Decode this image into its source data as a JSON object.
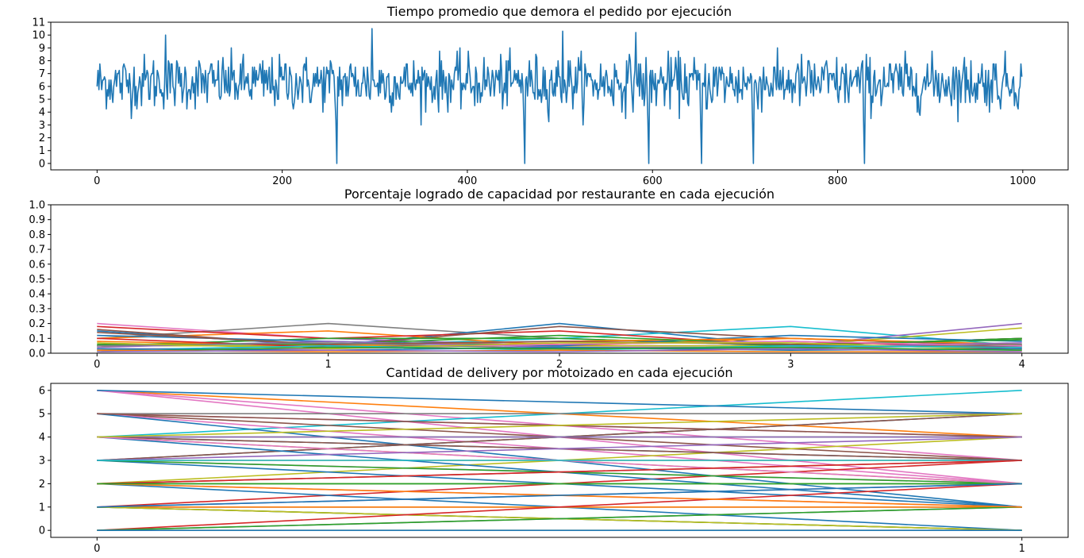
{
  "chart_data": [
    {
      "type": "line",
      "title": "Tiempo promedio que demora el pedido por ejecución",
      "xlim": [
        -50,
        1049
      ],
      "ylim": [
        -0.5,
        11
      ],
      "xticks": [
        0,
        200,
        400,
        600,
        800,
        1000
      ],
      "yticks": [
        0,
        1,
        2,
        3,
        4,
        5,
        6,
        7,
        8,
        9,
        10,
        11
      ],
      "grid": false,
      "series": [
        {
          "color": "#1f77b4",
          "x_range": [
            0,
            999
          ],
          "mean": 6.3,
          "spikes_to_zero_at": [
            259,
            462,
            596,
            653,
            709,
            829
          ],
          "peaks": [
            {
              "x": 74,
              "y": 10.0
            },
            {
              "x": 297,
              "y": 10.5
            },
            {
              "x": 503,
              "y": 10.3
            },
            {
              "x": 582,
              "y": 10.2
            }
          ]
        }
      ]
    },
    {
      "type": "line",
      "title": "Porcentaje logrado de capacidad por restaurante en cada ejecución",
      "x": [
        0,
        1,
        2,
        3,
        4
      ],
      "xlim": [
        -0.2,
        4.2
      ],
      "ylim": [
        0,
        1.0
      ],
      "xticks": [
        0,
        1,
        2,
        3,
        4
      ],
      "yticks": [
        0.0,
        0.1,
        0.2,
        0.3,
        0.4,
        0.5,
        0.6,
        0.7,
        0.8,
        0.9,
        1.0
      ],
      "grid": false,
      "series": [
        {
          "color": "#e377c2",
          "values": [
            0.2,
            0.1,
            0.05,
            0.05,
            0.05
          ]
        },
        {
          "color": "#7f7f7f",
          "values": [
            0.1,
            0.2,
            0.1,
            0.05,
            0.05
          ]
        },
        {
          "color": "#1f77b4",
          "values": [
            0.15,
            0.05,
            0.2,
            0.05,
            0.1
          ]
        },
        {
          "color": "#17becf",
          "values": [
            0.05,
            0.05,
            0.1,
            0.18,
            0.05
          ]
        },
        {
          "color": "#9467bd",
          "values": [
            0.05,
            0.1,
            0.05,
            0.05,
            0.2
          ]
        },
        {
          "color": "#bcbd22",
          "values": [
            0.05,
            0.05,
            0.05,
            0.05,
            0.17
          ]
        },
        {
          "color": "#ff7f0e",
          "values": [
            0.1,
            0.15,
            0.05,
            0.1,
            0.05
          ]
        },
        {
          "color": "#d62728",
          "values": [
            0.18,
            0.1,
            0.15,
            0.05,
            0.1
          ]
        },
        {
          "color": "#8c564b",
          "values": [
            0.16,
            0.05,
            0.18,
            0.1,
            0.05
          ]
        },
        {
          "color": "#2ca02c",
          "values": [
            0.05,
            0.1,
            0.1,
            0.05,
            0.1
          ]
        },
        {
          "color": "#1f77b4",
          "values": [
            0.12,
            0.08,
            0.05,
            0.12,
            0.08
          ]
        },
        {
          "color": "#ff7f0e",
          "values": [
            0.08,
            0.05,
            0.08,
            0.1,
            0.06
          ]
        },
        {
          "color": "#2ca02c",
          "values": [
            0.06,
            0.06,
            0.12,
            0.06,
            0.09
          ]
        },
        {
          "color": "#d62728",
          "values": [
            0.1,
            0.04,
            0.06,
            0.08,
            0.04
          ]
        },
        {
          "color": "#9467bd",
          "values": [
            0.04,
            0.08,
            0.04,
            0.04,
            0.07
          ]
        },
        {
          "color": "#8c564b",
          "values": [
            0.14,
            0.06,
            0.08,
            0.06,
            0.03
          ]
        },
        {
          "color": "#e377c2",
          "values": [
            0.03,
            0.03,
            0.06,
            0.08,
            0.05
          ]
        },
        {
          "color": "#7f7f7f",
          "values": [
            0.05,
            0.07,
            0.03,
            0.03,
            0.06
          ]
        },
        {
          "color": "#bcbd22",
          "values": [
            0.07,
            0.03,
            0.07,
            0.07,
            0.02
          ]
        },
        {
          "color": "#17becf",
          "values": [
            0.02,
            0.05,
            0.02,
            0.05,
            0.04
          ]
        },
        {
          "color": "#1f77b4",
          "values": [
            0.03,
            0.02,
            0.04,
            0.02,
            0.03
          ]
        },
        {
          "color": "#2ca02c",
          "values": [
            0.01,
            0.04,
            0.03,
            0.04,
            0.02
          ]
        },
        {
          "color": "#ff7f0e",
          "values": [
            0.02,
            0.01,
            0.02,
            0.01,
            0.01
          ]
        },
        {
          "color": "#9467bd",
          "values": [
            0.01,
            0.02,
            0.01,
            0.03,
            0.01
          ]
        }
      ]
    },
    {
      "type": "line",
      "title": "Cantidad de delivery por motoizado en cada ejecución",
      "x": [
        0,
        1
      ],
      "xlim": [
        -0.05,
        1.05
      ],
      "ylim": [
        -0.3,
        6.3
      ],
      "xticks": [
        0,
        1
      ],
      "yticks": [
        0,
        1,
        2,
        3,
        4,
        5,
        6
      ],
      "grid": false,
      "series": [
        {
          "color": "#ff7f0e",
          "values": [
            6,
            4
          ]
        },
        {
          "color": "#e377c2",
          "values": [
            6,
            2
          ]
        },
        {
          "color": "#e377c2",
          "values": [
            6,
            3
          ]
        },
        {
          "color": "#17becf",
          "values": [
            4,
            6
          ]
        },
        {
          "color": "#7f7f7f",
          "values": [
            5,
            5
          ]
        },
        {
          "color": "#e377c2",
          "values": [
            5,
            4
          ]
        },
        {
          "color": "#8c564b",
          "values": [
            5,
            3
          ]
        },
        {
          "color": "#e377c2",
          "values": [
            5,
            2
          ]
        },
        {
          "color": "#1f77b4",
          "values": [
            5,
            1
          ]
        },
        {
          "color": "#1f77b4",
          "values": [
            3,
            5
          ]
        },
        {
          "color": "#8c564b",
          "values": [
            3,
            5
          ]
        },
        {
          "color": "#2ca02c",
          "values": [
            4,
            4
          ]
        },
        {
          "color": "#9467bd",
          "values": [
            4,
            4
          ]
        },
        {
          "color": "#bcbd22",
          "values": [
            2,
            4
          ]
        },
        {
          "color": "#1f77b4",
          "values": [
            4,
            3
          ]
        },
        {
          "color": "#ff7f0e",
          "values": [
            3,
            3
          ]
        },
        {
          "color": "#8c564b",
          "values": [
            4,
            3
          ]
        },
        {
          "color": "#d62728",
          "values": [
            1,
            3
          ]
        },
        {
          "color": "#bcbd22",
          "values": [
            4,
            2
          ]
        },
        {
          "color": "#e377c2",
          "values": [
            3,
            2
          ]
        },
        {
          "color": "#1f77b4",
          "values": [
            4,
            1
          ]
        },
        {
          "color": "#1f77b4",
          "values": [
            3,
            1
          ]
        },
        {
          "color": "#2ca02c",
          "values": [
            3,
            2
          ]
        },
        {
          "color": "#17becf",
          "values": [
            2,
            2
          ]
        },
        {
          "color": "#8c564b",
          "values": [
            2,
            3
          ]
        },
        {
          "color": "#e377c2",
          "values": [
            2,
            1
          ]
        },
        {
          "color": "#1f77b4",
          "values": [
            2,
            0
          ]
        },
        {
          "color": "#bcbd22",
          "values": [
            2,
            2
          ]
        },
        {
          "color": "#9467bd",
          "values": [
            1,
            2
          ]
        },
        {
          "color": "#2ca02c",
          "values": [
            1,
            1
          ]
        },
        {
          "color": "#e377c2",
          "values": [
            1,
            1
          ]
        },
        {
          "color": "#ff7f0e",
          "values": [
            1,
            1
          ]
        },
        {
          "color": "#7f7f7f",
          "values": [
            1,
            0
          ]
        },
        {
          "color": "#2ca02c",
          "values": [
            1,
            0
          ]
        },
        {
          "color": "#bcbd22",
          "values": [
            1,
            0
          ]
        },
        {
          "color": "#d62728",
          "values": [
            0,
            2
          ]
        },
        {
          "color": "#7f7f7f",
          "values": [
            0,
            1
          ]
        },
        {
          "color": "#2ca02c",
          "values": [
            0,
            1
          ]
        },
        {
          "color": "#bcbd22",
          "values": [
            0,
            0
          ]
        },
        {
          "color": "#1f77b4",
          "values": [
            0,
            0
          ]
        },
        {
          "color": "#1f77b4",
          "values": [
            6,
            5
          ]
        },
        {
          "color": "#8c564b",
          "values": [
            5,
            4
          ]
        },
        {
          "color": "#e377c2",
          "values": [
            4,
            2
          ]
        },
        {
          "color": "#9467bd",
          "values": [
            3,
            4
          ]
        },
        {
          "color": "#17becf",
          "values": [
            3,
            3
          ]
        },
        {
          "color": "#ff7f0e",
          "values": [
            2,
            1
          ]
        },
        {
          "color": "#d62728",
          "values": [
            2,
            3
          ]
        },
        {
          "color": "#2ca02c",
          "values": [
            2,
            2
          ]
        },
        {
          "color": "#1f77b4",
          "values": [
            1,
            2
          ]
        },
        {
          "color": "#bcbd22",
          "values": [
            4,
            5
          ]
        }
      ]
    }
  ]
}
